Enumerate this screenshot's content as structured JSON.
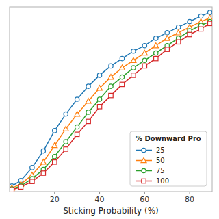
{
  "chart_data": {
    "type": "line",
    "xlabel": "Sticking Probability (%)",
    "legend_title": "% Downward Pro",
    "x": [
      1,
      5,
      10,
      15,
      20,
      25,
      30,
      35,
      40,
      45,
      50,
      55,
      60,
      65,
      70,
      75,
      80,
      85,
      89
    ],
    "series": [
      {
        "name": "25",
        "marker": "circle",
        "values": [
          0.03,
          0.06,
          0.13,
          0.22,
          0.33,
          0.42,
          0.5,
          0.57,
          0.63,
          0.68,
          0.72,
          0.76,
          0.79,
          0.83,
          0.86,
          0.89,
          0.92,
          0.95,
          0.97
        ]
      },
      {
        "name": "50",
        "marker": "triangle",
        "values": [
          0.02,
          0.04,
          0.09,
          0.16,
          0.25,
          0.34,
          0.42,
          0.49,
          0.56,
          0.62,
          0.67,
          0.71,
          0.75,
          0.79,
          0.83,
          0.86,
          0.89,
          0.92,
          0.94
        ]
      },
      {
        "name": "75",
        "marker": "circle",
        "values": [
          0.015,
          0.03,
          0.07,
          0.12,
          0.19,
          0.27,
          0.35,
          0.43,
          0.5,
          0.57,
          0.62,
          0.67,
          0.71,
          0.75,
          0.79,
          0.83,
          0.87,
          0.9,
          0.92
        ]
      },
      {
        "name": "100",
        "marker": "square",
        "values": [
          0.01,
          0.025,
          0.055,
          0.1,
          0.16,
          0.23,
          0.31,
          0.38,
          0.46,
          0.52,
          0.58,
          0.63,
          0.68,
          0.72,
          0.77,
          0.81,
          0.85,
          0.88,
          0.91
        ]
      }
    ],
    "xlim": [
      0,
      90
    ],
    "ylim": [
      0,
      1.0
    ],
    "xticks": [
      20,
      40,
      60,
      80
    ],
    "yticks": [],
    "tick_labels": "x",
    "grid": false,
    "legend": "lower right"
  }
}
